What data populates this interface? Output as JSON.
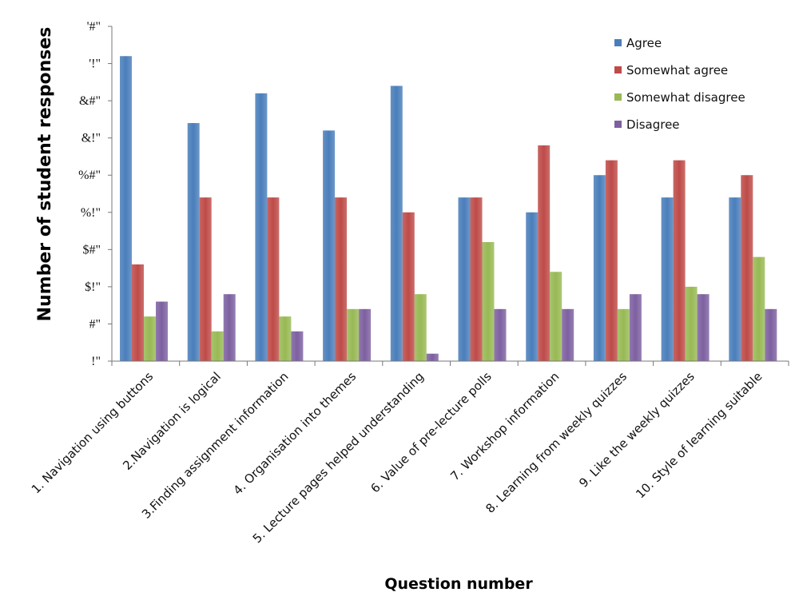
{
  "chart_data": {
    "type": "bar",
    "xlabel": "Question number",
    "ylabel": "Number of student responses",
    "ylim": [
      0,
      45
    ],
    "y_ticks": [
      {
        "value": 0,
        "label": "!\""
      },
      {
        "value": 5,
        "label": "#\""
      },
      {
        "value": 10,
        "label": "$!\""
      },
      {
        "value": 15,
        "label": "$#\""
      },
      {
        "value": 20,
        "label": "%!\""
      },
      {
        "value": 25,
        "label": "%#\""
      },
      {
        "value": 30,
        "label": "&!\""
      },
      {
        "value": 35,
        "label": "&#\""
      },
      {
        "value": 40,
        "label": "'!\""
      },
      {
        "value": 45,
        "label": "'#\""
      }
    ],
    "grid": false,
    "legend_position": "top-right",
    "categories": [
      "1. Navigation using  buttons",
      "2.Navigation is logical",
      "3.Finding assignment information",
      "4. Organisation into themes",
      "5. Lecture pages helped understanding",
      "6. Value of pre-lecture polls",
      "7. Workshop information",
      "8. Learning from weekly quizzes",
      "9. Like the weekly quizzes",
      "10. Style of learning suitable"
    ],
    "series": [
      {
        "name": "Agree",
        "color": "#4a7ebb",
        "values": [
          41,
          32,
          36,
          31,
          37,
          22,
          20,
          25,
          22,
          22
        ]
      },
      {
        "name": "Somewhat agree",
        "color": "#be4b48",
        "values": [
          13,
          22,
          22,
          22,
          20,
          22,
          29,
          27,
          27,
          25
        ]
      },
      {
        "name": "Somewhat disagree",
        "color": "#98b954",
        "values": [
          6,
          4,
          6,
          7,
          9,
          16,
          12,
          7,
          10,
          14
        ]
      },
      {
        "name": "Disagree",
        "color": "#7d60a0",
        "values": [
          8,
          9,
          4,
          7,
          1,
          7,
          7,
          9,
          9,
          7
        ]
      }
    ]
  }
}
